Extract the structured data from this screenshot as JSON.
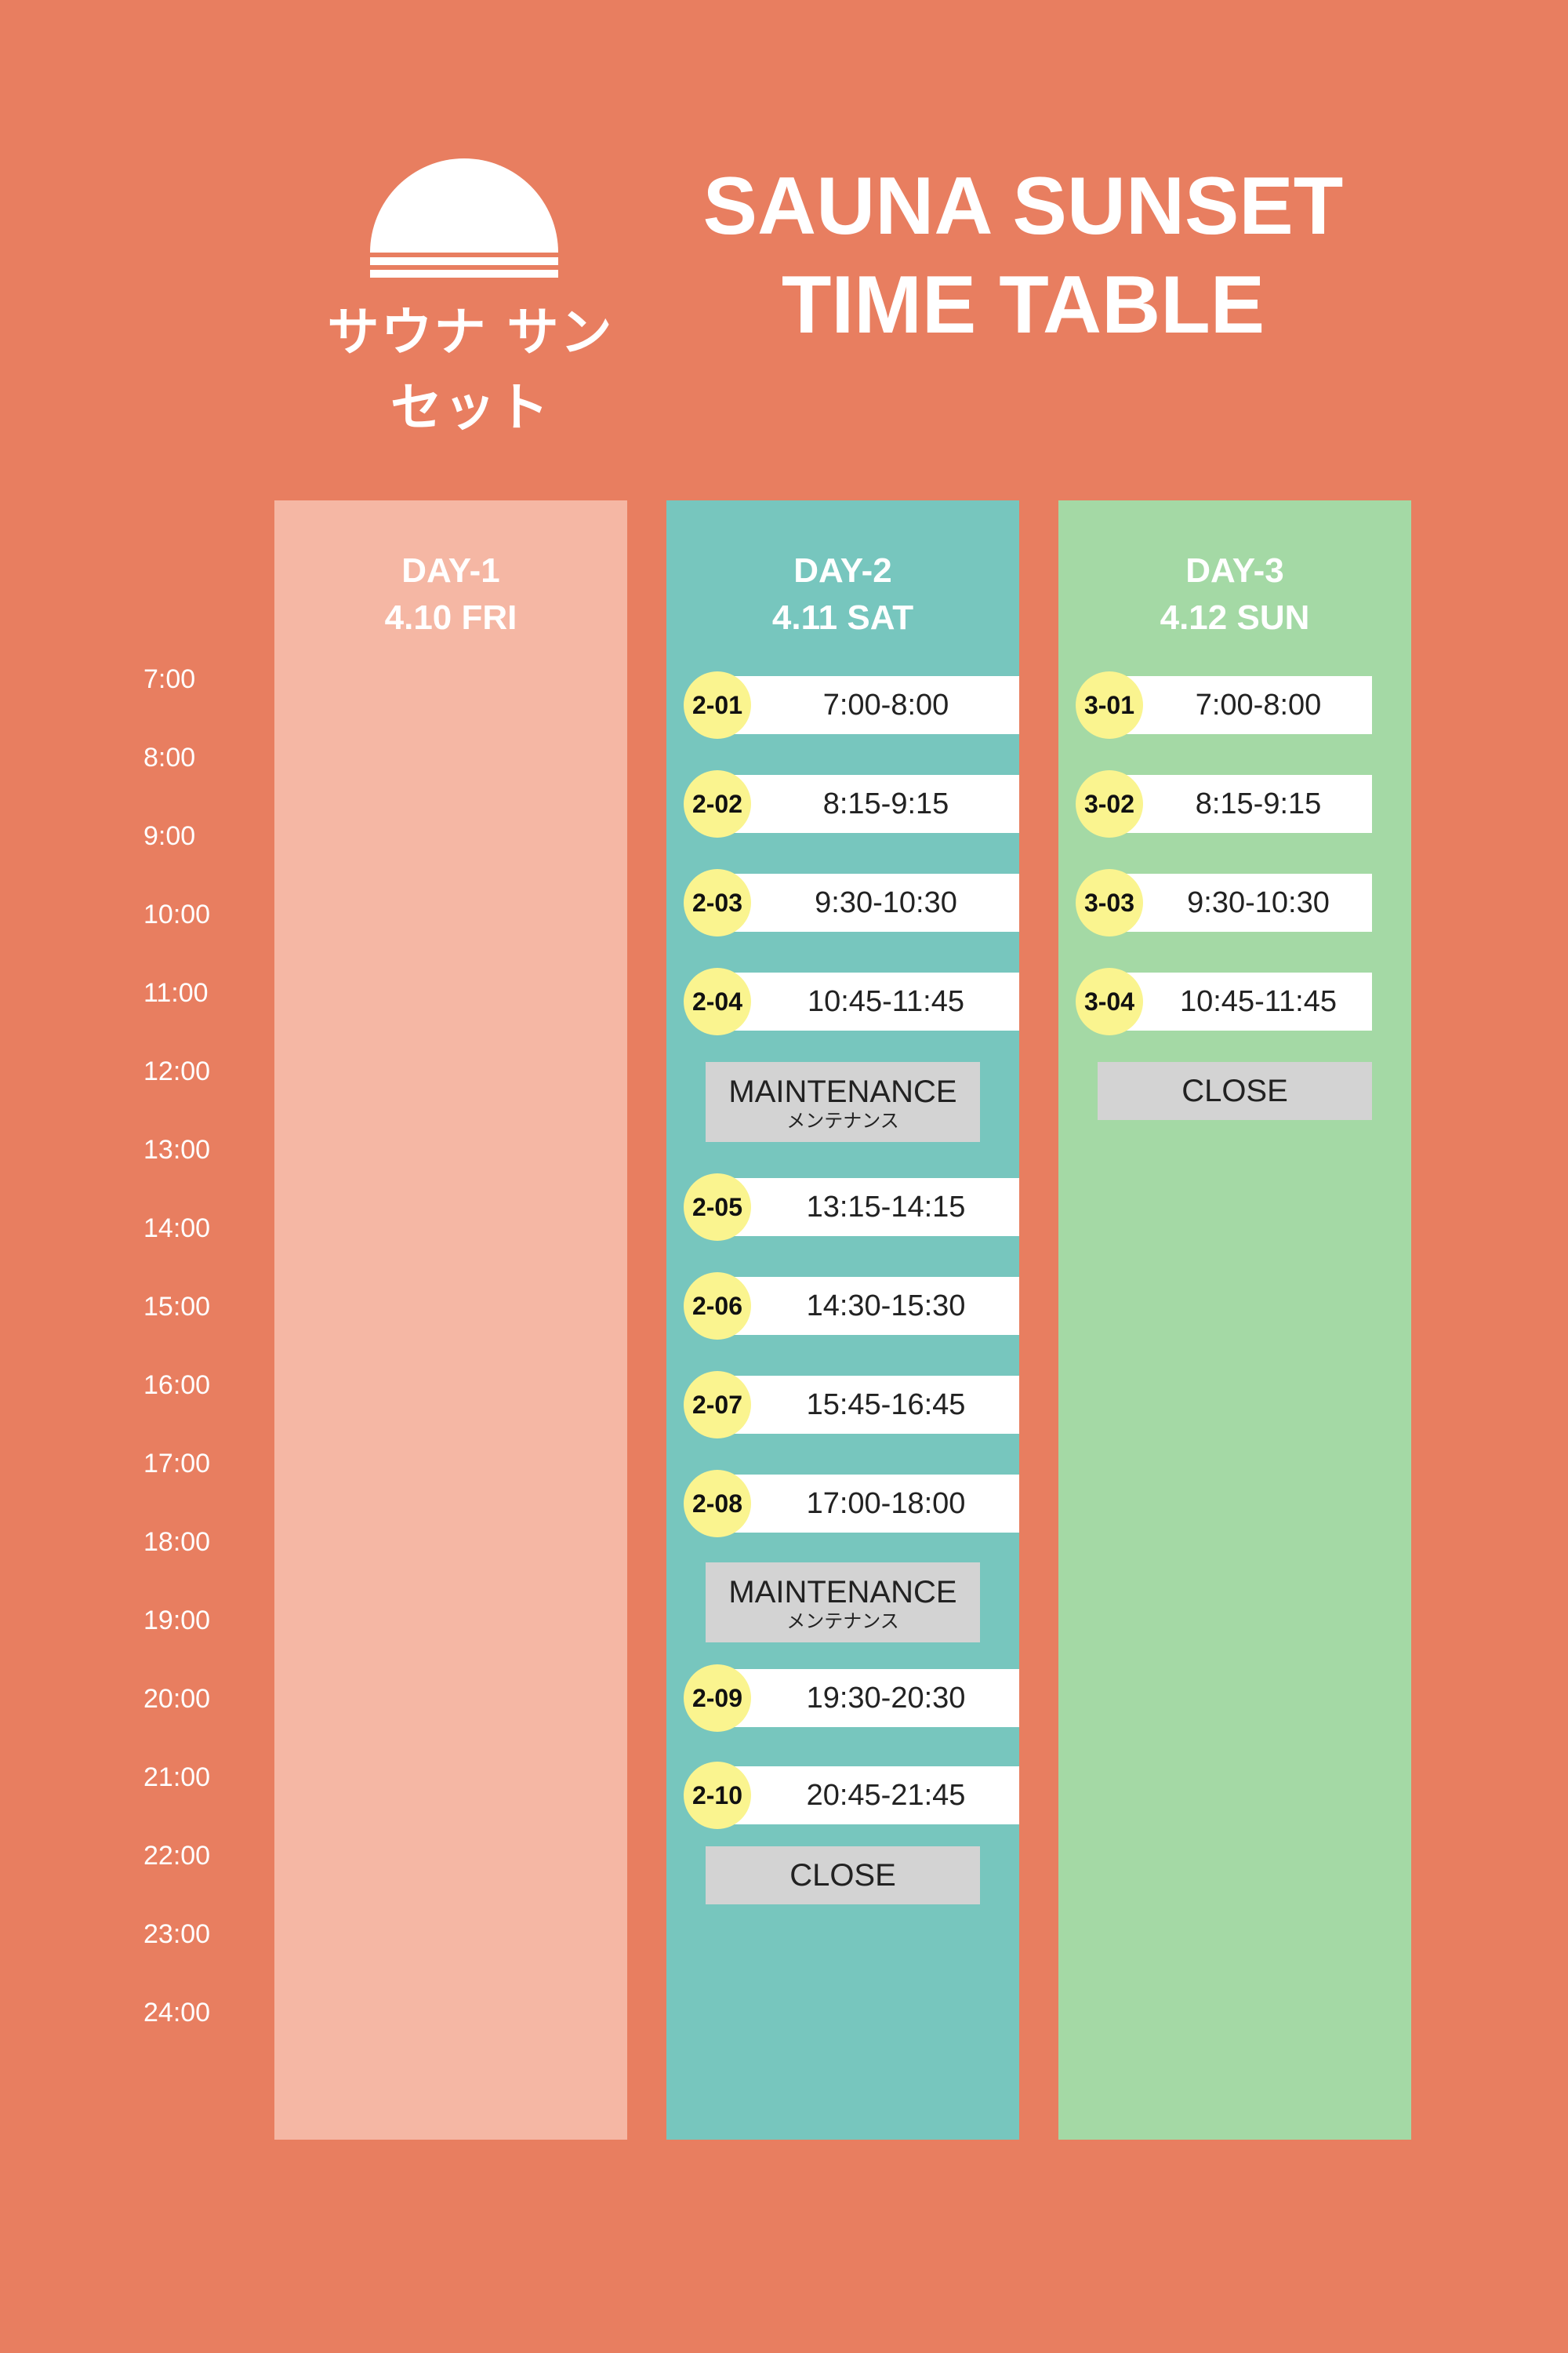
{
  "header": {
    "logo_text": "サウナ サンセット",
    "title_line1": "SAUNA SUNSET",
    "title_line2": "TIME TABLE"
  },
  "time_axis": [
    "7:00",
    "8:00",
    "9:00",
    "10:00",
    "11:00",
    "12:00",
    "13:00",
    "14:00",
    "15:00",
    "16:00",
    "17:00",
    "18:00",
    "19:00",
    "20:00",
    "21:00",
    "22:00",
    "23:00",
    "24:00"
  ],
  "days": {
    "day1": {
      "label": "DAY-1",
      "date": "4.10 FRI",
      "color": "#F5B7A4"
    },
    "day2": {
      "label": "DAY-2",
      "date": "4.11 SAT",
      "color": "#77C6BE",
      "slots": [
        {
          "id": "2-01",
          "time": "7:00-8:00"
        },
        {
          "id": "2-02",
          "time": "8:15-9:15"
        },
        {
          "id": "2-03",
          "time": "9:30-10:30"
        },
        {
          "id": "2-04",
          "time": "10:45-11:45"
        },
        {
          "id": "2-05",
          "time": "13:15-14:15"
        },
        {
          "id": "2-06",
          "time": "14:30-15:30"
        },
        {
          "id": "2-07",
          "time": "15:45-16:45"
        },
        {
          "id": "2-08",
          "time": "17:00-18:00"
        },
        {
          "id": "2-09",
          "time": "19:30-20:30"
        },
        {
          "id": "2-10",
          "time": "20:45-21:45"
        }
      ],
      "maintenance_1": {
        "label": "MAINTENANCE",
        "sub": "メンテナンス"
      },
      "maintenance_2": {
        "label": "MAINTENANCE",
        "sub": "メンテナンス"
      },
      "close": "CLOSE"
    },
    "day3": {
      "label": "DAY-3",
      "date": "4.12 SUN",
      "color": "#A4D9A5",
      "slots": [
        {
          "id": "3-01",
          "time": "7:00-8:00"
        },
        {
          "id": "3-02",
          "time": "8:15-9:15"
        },
        {
          "id": "3-03",
          "time": "9:30-10:30"
        },
        {
          "id": "3-04",
          "time": "10:45-11:45"
        }
      ],
      "close": "CLOSE"
    }
  },
  "colors": {
    "background": "#E87E60",
    "badge": "#FAF48F",
    "gray_block": "#D3D3D3"
  }
}
